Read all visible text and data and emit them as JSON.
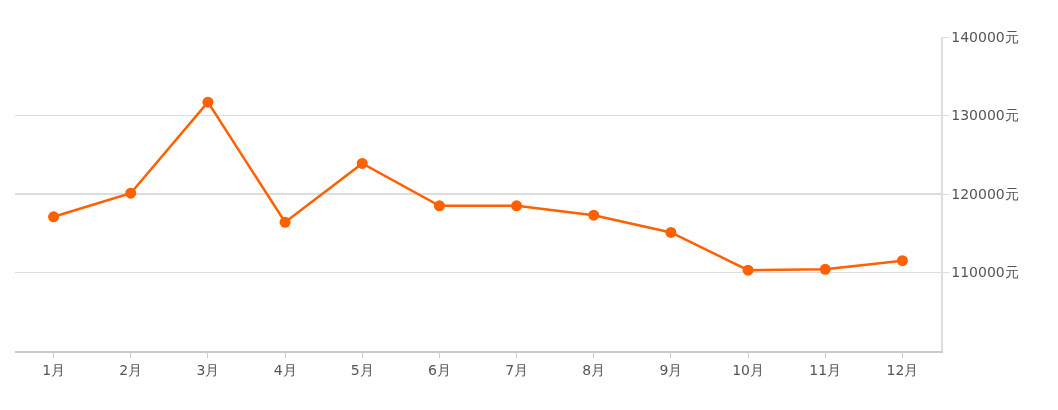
{
  "chart_data": {
    "type": "line",
    "categories": [
      "1月",
      "2月",
      "3月",
      "4月",
      "5月",
      "6月",
      "7月",
      "8月",
      "9月",
      "10月",
      "11月",
      "12月"
    ],
    "series": [
      {
        "color": "#ff6000",
        "values": [
          117100,
          120100,
          131700,
          116400,
          123900,
          118500,
          118500,
          117300,
          115100,
          110300,
          110400,
          111500
        ]
      }
    ],
    "ylim": [
      100000,
      140000
    ],
    "yticks": [
      {
        "value": 110000,
        "label": "110000元"
      },
      {
        "value": 120000,
        "label": "120000元"
      },
      {
        "value": 130000,
        "label": "130000元"
      },
      {
        "value": 140000,
        "label": "140000元"
      }
    ],
    "grid": "y",
    "legend": false,
    "marker": "circle",
    "line_style": "solid"
  }
}
